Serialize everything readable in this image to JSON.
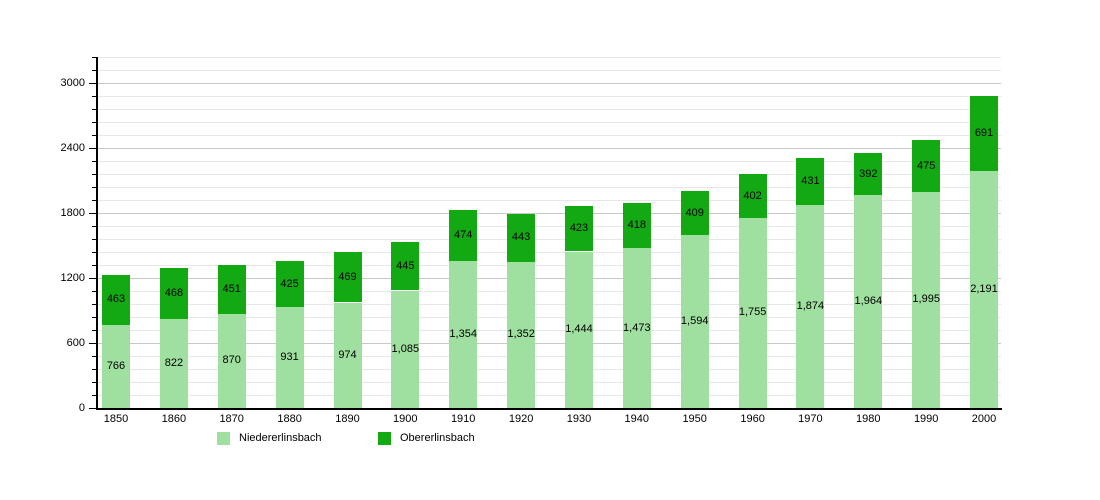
{
  "chart_data": {
    "type": "bar",
    "stacked": true,
    "title": "",
    "categories": [
      "1850",
      "1860",
      "1870",
      "1880",
      "1890",
      "1900",
      "1910",
      "1920",
      "1930",
      "1940",
      "1950",
      "1960",
      "1970",
      "1980",
      "1990",
      "2000"
    ],
    "series": [
      {
        "name": "Niedererlinsbach",
        "color": "#9fdf9f",
        "values": [
          766,
          822,
          870,
          931,
          974,
          1085,
          1354,
          1352,
          1444,
          1473,
          1594,
          1755,
          1874,
          1964,
          1995,
          2191
        ]
      },
      {
        "name": "Obererlinsbach",
        "color": "#13a913",
        "values": [
          463,
          468,
          451,
          425,
          469,
          445,
          474,
          443,
          423,
          418,
          409,
          402,
          431,
          392,
          475,
          691
        ]
      }
    ],
    "ylim": [
      0,
      3000
    ],
    "y_major_step": 600,
    "y_minor_step": 120,
    "y_tick_labels": [
      "0",
      "600",
      "1200",
      "1800",
      "2400",
      "3000"
    ],
    "grid": true,
    "grid_minor_color": "#e7e7e7",
    "grid_major_color": "#c8c8c8",
    "axis_color": "#000000",
    "value_labels": "inside-center",
    "value_label_format": "thousands-comma",
    "legend_position": "bottom",
    "background": "#ffffff"
  }
}
